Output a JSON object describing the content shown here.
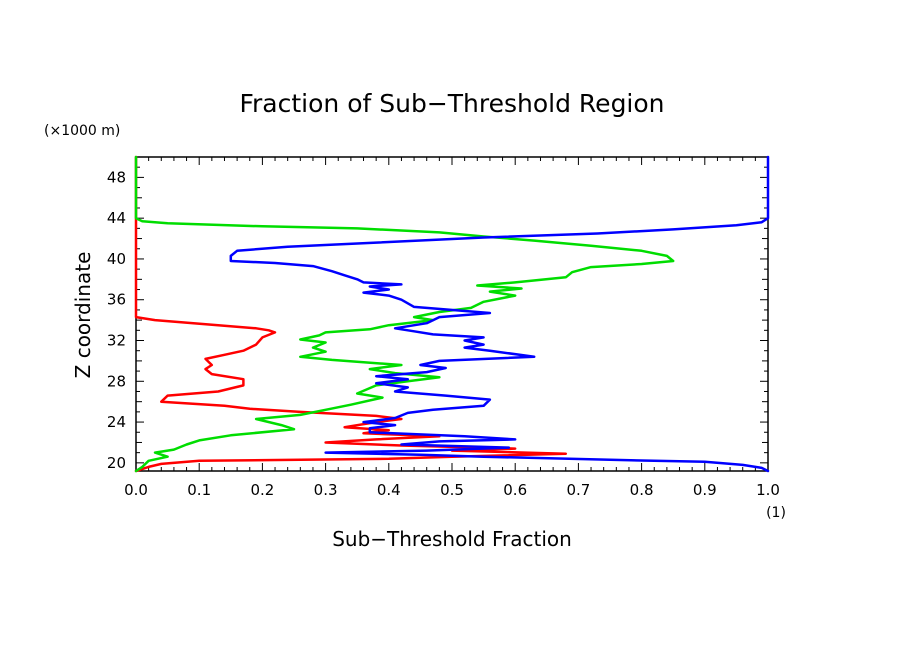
{
  "chart_data": {
    "type": "line",
    "title": "Fraction of Sub−Threshold Region",
    "xlabel": "Sub−Threshold Fraction",
    "ylabel": "Z coordinate",
    "x_unit": "(1)",
    "y_unit": "(×1000 m)",
    "xlim": [
      0.0,
      1.0
    ],
    "ylim": [
      19.2,
      50.0
    ],
    "x_ticks": [
      0.0,
      0.1,
      0.2,
      0.3,
      0.4,
      0.5,
      0.6,
      0.7,
      0.8,
      0.9,
      1.0
    ],
    "x_tick_labels": [
      "0.0",
      "0.1",
      "0.2",
      "0.3",
      "0.4",
      "0.5",
      "0.6",
      "0.7",
      "0.8",
      "0.9",
      "1.0"
    ],
    "y_ticks": [
      20,
      24,
      28,
      32,
      36,
      40,
      44,
      48
    ],
    "y_tick_labels": [
      "20",
      "24",
      "28",
      "32",
      "36",
      "40",
      "44",
      "48"
    ],
    "grid": false,
    "series": [
      {
        "color": "#ff0000",
        "points": [
          [
            0.0,
            50.0
          ],
          [
            0.0,
            34.3
          ],
          [
            0.03,
            34.0
          ],
          [
            0.13,
            33.5
          ],
          [
            0.19,
            33.2
          ],
          [
            0.21,
            33.0
          ],
          [
            0.22,
            32.8
          ],
          [
            0.2,
            32.3
          ],
          [
            0.19,
            31.6
          ],
          [
            0.17,
            31.0
          ],
          [
            0.14,
            30.6
          ],
          [
            0.11,
            30.2
          ],
          [
            0.12,
            29.6
          ],
          [
            0.11,
            29.2
          ],
          [
            0.12,
            28.7
          ],
          [
            0.17,
            28.2
          ],
          [
            0.17,
            27.6
          ],
          [
            0.13,
            27.0
          ],
          [
            0.05,
            26.6
          ],
          [
            0.04,
            26.0
          ],
          [
            0.14,
            25.6
          ],
          [
            0.18,
            25.3
          ],
          [
            0.26,
            25.0
          ],
          [
            0.38,
            24.6
          ],
          [
            0.42,
            24.3
          ],
          [
            0.38,
            24.0
          ],
          [
            0.33,
            23.5
          ],
          [
            0.4,
            23.2
          ],
          [
            0.36,
            22.9
          ],
          [
            0.48,
            22.6
          ],
          [
            0.38,
            22.3
          ],
          [
            0.3,
            22.0
          ],
          [
            0.42,
            21.7
          ],
          [
            0.6,
            21.4
          ],
          [
            0.5,
            21.2
          ],
          [
            0.68,
            20.9
          ],
          [
            0.5,
            20.6
          ],
          [
            0.4,
            20.4
          ],
          [
            0.1,
            20.2
          ],
          [
            0.04,
            19.9
          ],
          [
            0.02,
            19.6
          ],
          [
            0.0,
            19.2
          ]
        ]
      },
      {
        "color": "#00dd00",
        "points": [
          [
            0.0,
            50.0
          ],
          [
            0.0,
            44.0
          ],
          [
            0.01,
            43.7
          ],
          [
            0.05,
            43.5
          ],
          [
            0.2,
            43.2
          ],
          [
            0.35,
            43.0
          ],
          [
            0.48,
            42.6
          ],
          [
            0.55,
            42.2
          ],
          [
            0.63,
            41.8
          ],
          [
            0.72,
            41.3
          ],
          [
            0.8,
            40.8
          ],
          [
            0.84,
            40.3
          ],
          [
            0.85,
            39.8
          ],
          [
            0.8,
            39.5
          ],
          [
            0.72,
            39.2
          ],
          [
            0.69,
            38.7
          ],
          [
            0.68,
            38.2
          ],
          [
            0.6,
            37.7
          ],
          [
            0.54,
            37.4
          ],
          [
            0.61,
            37.1
          ],
          [
            0.56,
            36.8
          ],
          [
            0.6,
            36.4
          ],
          [
            0.55,
            35.8
          ],
          [
            0.53,
            35.2
          ],
          [
            0.48,
            34.8
          ],
          [
            0.44,
            34.3
          ],
          [
            0.47,
            34.0
          ],
          [
            0.4,
            33.5
          ],
          [
            0.37,
            33.1
          ],
          [
            0.3,
            32.8
          ],
          [
            0.29,
            32.5
          ],
          [
            0.26,
            32.1
          ],
          [
            0.3,
            31.8
          ],
          [
            0.28,
            31.3
          ],
          [
            0.3,
            30.9
          ],
          [
            0.26,
            30.4
          ],
          [
            0.31,
            30.1
          ],
          [
            0.42,
            29.6
          ],
          [
            0.37,
            29.2
          ],
          [
            0.41,
            28.8
          ],
          [
            0.48,
            28.4
          ],
          [
            0.43,
            28.0
          ],
          [
            0.38,
            27.6
          ],
          [
            0.35,
            26.8
          ],
          [
            0.39,
            26.4
          ],
          [
            0.34,
            25.7
          ],
          [
            0.3,
            25.2
          ],
          [
            0.26,
            24.7
          ],
          [
            0.19,
            24.3
          ],
          [
            0.23,
            23.7
          ],
          [
            0.25,
            23.3
          ],
          [
            0.15,
            22.7
          ],
          [
            0.1,
            22.2
          ],
          [
            0.08,
            21.8
          ],
          [
            0.06,
            21.3
          ],
          [
            0.03,
            21.0
          ],
          [
            0.05,
            20.6
          ],
          [
            0.02,
            20.2
          ],
          [
            0.01,
            19.6
          ],
          [
            0.0,
            19.2
          ]
        ]
      },
      {
        "color": "#0000ff",
        "points": [
          [
            1.0,
            50.0
          ],
          [
            1.0,
            44.0
          ],
          [
            0.99,
            43.6
          ],
          [
            0.95,
            43.3
          ],
          [
            0.85,
            42.9
          ],
          [
            0.73,
            42.5
          ],
          [
            0.55,
            42.1
          ],
          [
            0.38,
            41.6
          ],
          [
            0.24,
            41.2
          ],
          [
            0.16,
            40.8
          ],
          [
            0.15,
            40.3
          ],
          [
            0.15,
            39.8
          ],
          [
            0.22,
            39.6
          ],
          [
            0.28,
            39.3
          ],
          [
            0.31,
            38.8
          ],
          [
            0.33,
            38.4
          ],
          [
            0.35,
            38.0
          ],
          [
            0.36,
            37.7
          ],
          [
            0.42,
            37.5
          ],
          [
            0.37,
            37.3
          ],
          [
            0.4,
            37.0
          ],
          [
            0.36,
            36.7
          ],
          [
            0.4,
            36.4
          ],
          [
            0.42,
            36.0
          ],
          [
            0.44,
            35.3
          ],
          [
            0.56,
            34.7
          ],
          [
            0.48,
            34.3
          ],
          [
            0.46,
            33.7
          ],
          [
            0.41,
            33.2
          ],
          [
            0.44,
            32.9
          ],
          [
            0.47,
            32.6
          ],
          [
            0.55,
            32.3
          ],
          [
            0.52,
            32.0
          ],
          [
            0.55,
            31.6
          ],
          [
            0.52,
            31.3
          ],
          [
            0.56,
            31.0
          ],
          [
            0.63,
            30.4
          ],
          [
            0.48,
            30.0
          ],
          [
            0.45,
            29.6
          ],
          [
            0.49,
            29.3
          ],
          [
            0.46,
            28.9
          ],
          [
            0.38,
            28.5
          ],
          [
            0.43,
            28.2
          ],
          [
            0.38,
            27.8
          ],
          [
            0.43,
            27.4
          ],
          [
            0.41,
            27.0
          ],
          [
            0.49,
            26.6
          ],
          [
            0.56,
            26.2
          ],
          [
            0.55,
            25.6
          ],
          [
            0.47,
            25.2
          ],
          [
            0.43,
            24.9
          ],
          [
            0.41,
            24.4
          ],
          [
            0.36,
            24.0
          ],
          [
            0.41,
            23.7
          ],
          [
            0.37,
            23.4
          ],
          [
            0.37,
            23.0
          ],
          [
            0.52,
            22.6
          ],
          [
            0.6,
            22.3
          ],
          [
            0.48,
            22.1
          ],
          [
            0.42,
            21.8
          ],
          [
            0.59,
            21.5
          ],
          [
            0.46,
            21.2
          ],
          [
            0.3,
            21.0
          ],
          [
            0.45,
            20.8
          ],
          [
            0.55,
            20.6
          ],
          [
            0.75,
            20.3
          ],
          [
            0.9,
            20.1
          ],
          [
            0.96,
            19.8
          ],
          [
            0.99,
            19.5
          ],
          [
            1.0,
            19.2
          ]
        ]
      }
    ]
  }
}
